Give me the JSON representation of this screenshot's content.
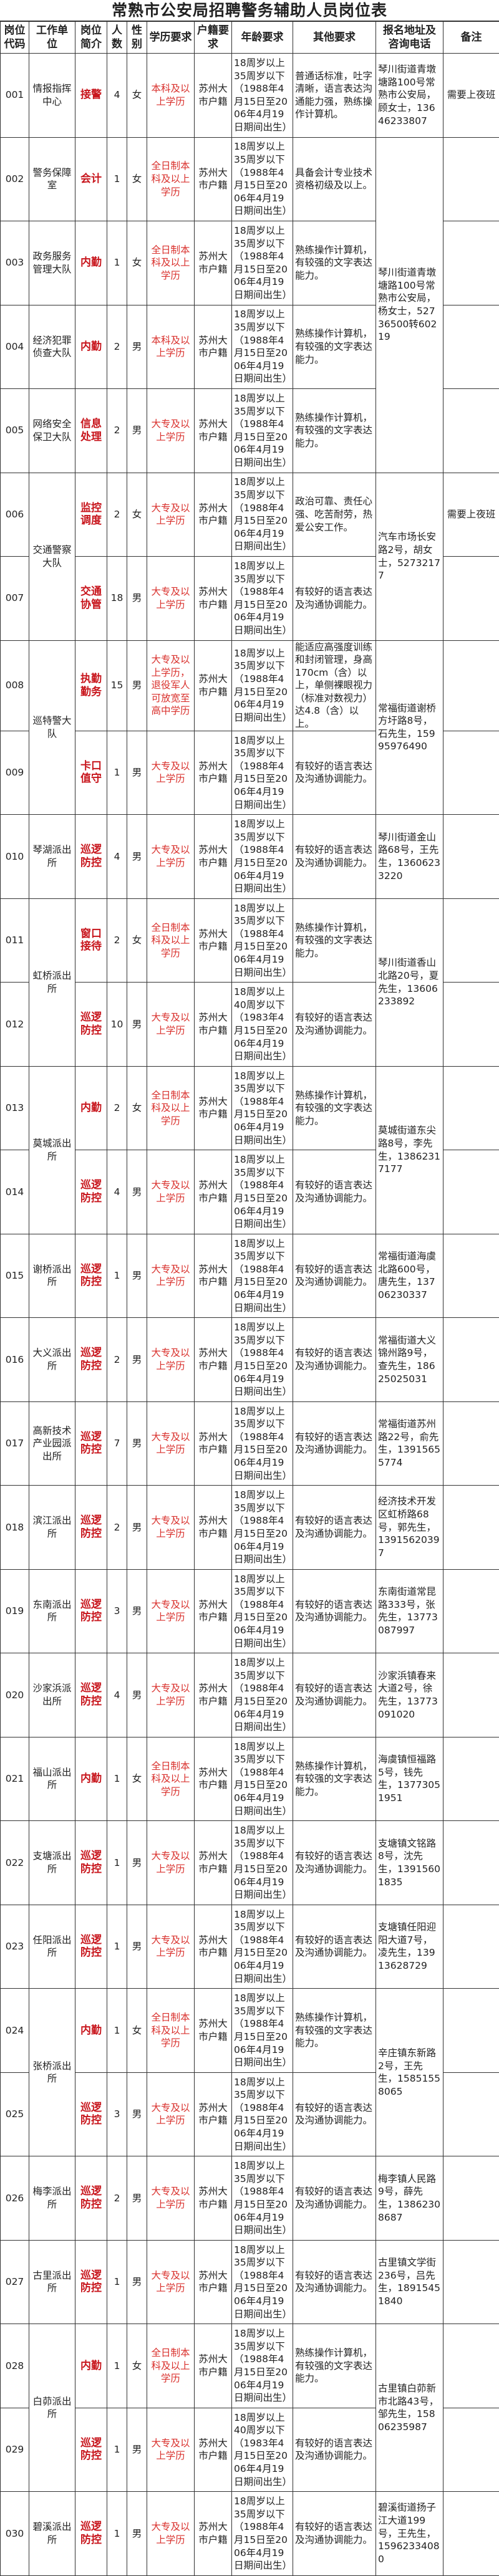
{
  "title": "常熟市公安局招聘警务辅助人员岗位表",
  "headers": [
    "岗位代码",
    "工作单位",
    "岗位简介",
    "人数",
    "性别",
    "学历要求",
    "户籍要求",
    "年龄要求",
    "其他要求",
    "报名地址及咨询电话",
    "备注"
  ],
  "colors": {
    "position": "#c8161d",
    "education": "#d9302c",
    "border": "#333333"
  },
  "rows": [
    {
      "code": "001",
      "unit": "情报指挥中心",
      "position": "接警",
      "count": "4",
      "gender": "女",
      "education": "本科及以上学历",
      "hukou": "苏州大市户籍",
      "age": "18周岁以上35周岁以下（1988年4月15日至2006年4月19日期间出生）",
      "other": "普通话标准，吐字清晰，语言表达沟通能力强，熟练操作计算机。",
      "address": "琴川街道青墩塘路100号常熟市公安局，顾女士，13646233807",
      "remark": "需要上夜班"
    },
    {
      "code": "002",
      "unit": "警务保障室",
      "position": "会计",
      "count": "1",
      "gender": "女",
      "education": "全日制本科及以上学历",
      "hukou": "苏州大市户籍",
      "age": "18周岁以上35周岁以下（1988年4月15日至2006年4月19日期间出生）",
      "other": "具备会计专业技术资格初级及以上。",
      "address": "琴川街道青墩塘路100号常熟市公安局，杨女士，52736500转60219",
      "remark": ""
    },
    {
      "code": "003",
      "unit": "政务服务管理大队",
      "position": "内勤",
      "count": "1",
      "gender": "女",
      "education": "全日制本科及以上学历",
      "hukou": "苏州大市户籍",
      "age": "18周岁以上35周岁以下（1988年4月15日至2006年4月19日期间出生）",
      "other": "熟练操作计算机，有较强的文字表达能力。",
      "address": null,
      "remark": ""
    },
    {
      "code": "004",
      "unit": "经济犯罪侦查大队",
      "position": "内勤",
      "count": "2",
      "gender": "男",
      "education": "本科及以上学历",
      "hukou": "苏州大市户籍",
      "age": "18周岁以上35周岁以下（1988年4月15日至2006年4月19日期间出生）",
      "other": "熟练操作计算机，有较强的文字表达能力。",
      "address": null,
      "remark": ""
    },
    {
      "code": "005",
      "unit": "网络安全保卫大队",
      "position": "信息处理",
      "count": "2",
      "gender": "男",
      "education": "大专及以上学历",
      "hukou": "苏州大市户籍",
      "age": "18周岁以上35周岁以下（1988年4月15日至2006年4月19日期间出生）",
      "other": "熟练操作计算机，有较强的文字表达能力。",
      "address": null,
      "remark": ""
    },
    {
      "code": "006",
      "unit": "交通警察大队",
      "position": "监控调度",
      "count": "2",
      "gender": "女",
      "education": "大专及以上学历",
      "hukou": "苏州大市户籍",
      "age": "18周岁以上35周岁以下（1988年4月15日至2006年4月19日期间出生）",
      "other": "政治可靠、责任心强、吃苦耐劳，热爱公安工作。",
      "address": "汽车市场长安路2号，胡女士，52732177",
      "remark": "需要上夜班"
    },
    {
      "code": "007",
      "unit": null,
      "position": "交通协管",
      "count": "18",
      "gender": "男",
      "education": "大专及以上学历",
      "hukou": "苏州大市户籍",
      "age": "18周岁以上35周岁以下（1988年4月15日至2006年4月19日期间出生）",
      "other": "有较好的语言表达及沟通协调能力。",
      "address": null,
      "remark": ""
    },
    {
      "code": "008",
      "unit": "巡特警大队",
      "position": "执勤勤务",
      "count": "15",
      "gender": "男",
      "education": "大专及以上学历，退役军人可放宽至高中学历",
      "hukou": "苏州大市户籍",
      "age": "18周岁以上35周岁以下（1988年4月15日至2006年4月19日期间出生）",
      "other": "能适应高强度训练和封闭管理，身高170cm（含）以上，单侧裸眼视力（标准对数视力）达4.8（含）以上。",
      "address": "常福街道谢桥方圩路8号，石先生，15995976490",
      "remark": ""
    },
    {
      "code": "009",
      "unit": null,
      "position": "卡口值守",
      "count": "1",
      "gender": "男",
      "education": "大专及以上学历",
      "hukou": "苏州大市户籍",
      "age": "18周岁以上35周岁以下（1988年4月15日至2006年4月19日期间出生）",
      "other": "有较好的语言表达及沟通协调能力。",
      "address": null,
      "remark": ""
    },
    {
      "code": "010",
      "unit": "琴湖派出所",
      "position": "巡逻防控",
      "count": "4",
      "gender": "男",
      "education": "大专及以上学历",
      "hukou": "苏州大市户籍",
      "age": "18周岁以上35周岁以下（1988年4月15日至2006年4月19日期间出生）",
      "other": "有较好的语言表达及沟通协调能力。",
      "address": "琴川街道金山路68号，王先生，13606233220",
      "remark": ""
    },
    {
      "code": "011",
      "unit": "虹桥派出所",
      "position": "窗口接待",
      "count": "2",
      "gender": "女",
      "education": "全日制本科及以上学历",
      "hukou": "苏州大市户籍",
      "age": "18周岁以上35周岁以下（1988年4月15日至2006年4月19日期间出生）",
      "other": "熟练操作计算机，有较强的文字表达能力。",
      "address": "琴川街道香山北路20号，夏先生，13606233892",
      "remark": ""
    },
    {
      "code": "012",
      "unit": null,
      "position": "巡逻防控",
      "count": "10",
      "gender": "男",
      "education": "大专及以上学历",
      "hukou": "苏州大市户籍",
      "age": "18周岁以上40周岁以下（1983年4月15日至2006年4月19日期间出生）",
      "other": "有较好的语言表达及沟通协调能力。",
      "address": null,
      "remark": ""
    },
    {
      "code": "013",
      "unit": "莫城派出所",
      "position": "内勤",
      "count": "2",
      "gender": "女",
      "education": "全日制本科及以上学历",
      "hukou": "苏州大市户籍",
      "age": "18周岁以上35周岁以下（1988年4月15日至2006年4月19日期间出生）",
      "other": "熟练操作计算机，有较强的文字表达能力。",
      "address": "莫城街道东尖路8号，李先生，13862317177",
      "remark": ""
    },
    {
      "code": "014",
      "unit": null,
      "position": "巡逻防控",
      "count": "4",
      "gender": "男",
      "education": "大专及以上学历",
      "hukou": "苏州大市户籍",
      "age": "18周岁以上35周岁以下（1988年4月15日至2006年4月19日期间出生）",
      "other": "有较好的语言表达及沟通协调能力。",
      "address": null,
      "remark": ""
    },
    {
      "code": "015",
      "unit": "谢桥派出所",
      "position": "巡逻防控",
      "count": "1",
      "gender": "男",
      "education": "大专及以上学历",
      "hukou": "苏州大市户籍",
      "age": "18周岁以上35周岁以下（1988年4月15日至2006年4月19日期间出生）",
      "other": "有较好的语言表达及沟通协调能力。",
      "address": "常福街道海虞北路600号，唐先生，13706230337",
      "remark": ""
    },
    {
      "code": "016",
      "unit": "大义派出所",
      "position": "巡逻防控",
      "count": "2",
      "gender": "男",
      "education": "大专及以上学历",
      "hukou": "苏州大市户籍",
      "age": "18周岁以上35周岁以下（1988年4月15日至2006年4月19日期间出生）",
      "other": "有较好的语言表达及沟通协调能力。",
      "address": "常福街道大义锦州路9号，查先生，18625025031",
      "remark": ""
    },
    {
      "code": "017",
      "unit": "高新技术产业园派出所",
      "position": "巡逻防控",
      "count": "7",
      "gender": "男",
      "education": "大专及以上学历",
      "hukou": "苏州大市户籍",
      "age": "18周岁以上35周岁以下（1988年4月15日至2006年4月19日期间出生）",
      "other": "有较好的语言表达及沟通协调能力。",
      "address": "常福街道苏州路22号，俞先生，13915655774",
      "remark": ""
    },
    {
      "code": "018",
      "unit": "滨江派出所",
      "position": "巡逻防控",
      "count": "2",
      "gender": "男",
      "education": "大专及以上学历",
      "hukou": "苏州大市户籍",
      "age": "18周岁以上35周岁以下（1988年4月15日至2006年4月19日期间出生）",
      "other": "有较好的语言表达及沟通协调能力。",
      "address": "经济技术开发区虹桥路68号，郭先生，13915620397",
      "remark": ""
    },
    {
      "code": "019",
      "unit": "东南派出所",
      "position": "巡逻防控",
      "count": "3",
      "gender": "男",
      "education": "大专及以上学历",
      "hukou": "苏州大市户籍",
      "age": "18周岁以上35周岁以下（1988年4月15日至2006年4月19日期间出生）",
      "other": "有较好的语言表达及沟通协调能力。",
      "address": "东南街道常昆路333号，张先生，13773087997",
      "remark": ""
    },
    {
      "code": "020",
      "unit": "沙家浜派出所",
      "position": "巡逻防控",
      "count": "4",
      "gender": "男",
      "education": "大专及以上学历",
      "hukou": "苏州大市户籍",
      "age": "18周岁以上35周岁以下（1988年4月15日至2006年4月19日期间出生）",
      "other": "有较好的语言表达及沟通协调能力。",
      "address": "沙家浜镇春来大道2号，徐先生，13773091020",
      "remark": ""
    },
    {
      "code": "021",
      "unit": "福山派出所",
      "position": "内勤",
      "count": "1",
      "gender": "女",
      "education": "全日制本科及以上学历",
      "hukou": "苏州大市户籍",
      "age": "18周岁以上35周岁以下（1988年4月15日至2006年4月19日期间出生）",
      "other": "熟练操作计算机，有较强的文字表达能力。",
      "address": "海虞镇恒福路5号，钱先生，13773051951",
      "remark": ""
    },
    {
      "code": "022",
      "unit": "支塘派出所",
      "position": "巡逻防控",
      "count": "1",
      "gender": "男",
      "education": "大专及以上学历",
      "hukou": "苏州大市户籍",
      "age": "18周岁以上35周岁以下（1988年4月15日至2006年4月19日期间出生）",
      "other": "有较好的语言表达及沟通协调能力。",
      "address": "支塘镇文铭路8号，沈先生，13915601835",
      "remark": ""
    },
    {
      "code": "023",
      "unit": "任阳派出所",
      "position": "巡逻防控",
      "count": "1",
      "gender": "男",
      "education": "大专及以上学历",
      "hukou": "苏州大市户籍",
      "age": "18周岁以上35周岁以下（1988年4月15日至2006年4月19日期间出生）",
      "other": "有较好的语言表达及沟通协调能力。",
      "address": "支塘镇任阳迎阳大道7号，凌先生，13913628729",
      "remark": ""
    },
    {
      "code": "024",
      "unit": "张桥派出所",
      "position": "内勤",
      "count": "1",
      "gender": "女",
      "education": "全日制本科及以上学历",
      "hukou": "苏州大市户籍",
      "age": "18周岁以上35周岁以下（1988年4月15日至2006年4月19日期间出生）",
      "other": "熟练操作计算机，有较强的文字表达能力。",
      "address": "辛庄镇东新路2号，王先生，15851558065",
      "remark": ""
    },
    {
      "code": "025",
      "unit": null,
      "position": "巡逻防控",
      "count": "3",
      "gender": "男",
      "education": "大专及以上学历",
      "hukou": "苏州大市户籍",
      "age": "18周岁以上35周岁以下（1988年4月15日至2006年4月19日期间出生）",
      "other": "有较好的语言表达及沟通协调能力。",
      "address": null,
      "remark": ""
    },
    {
      "code": "026",
      "unit": "梅李派出所",
      "position": "巡逻防控",
      "count": "2",
      "gender": "男",
      "education": "大专及以上学历",
      "hukou": "苏州大市户籍",
      "age": "18周岁以上35周岁以下（1988年4月15日至2006年4月19日期间出生）",
      "other": "有较好的语言表达及沟通协调能力。",
      "address": "梅李镇人民路9号，薛先生，13862308687",
      "remark": ""
    },
    {
      "code": "027",
      "unit": "古里派出所",
      "position": "巡逻防控",
      "count": "1",
      "gender": "男",
      "education": "大专及以上学历",
      "hukou": "苏州大市户籍",
      "age": "18周岁以上35周岁以下（1988年4月15日至2006年4月19日期间出生）",
      "other": "有较好的语言表达及沟通协调能力。",
      "address": "古里镇文学街236号，吕先生，18915451840",
      "remark": ""
    },
    {
      "code": "028",
      "unit": "白茆派出所",
      "position": "内勤",
      "count": "1",
      "gender": "女",
      "education": "全日制本科及以上学历",
      "hukou": "苏州大市户籍",
      "age": "18周岁以上35周岁以下（1988年4月15日至2006年4月19日期间出生）",
      "other": "熟练操作计算机，有较强的文字表达能力。",
      "address": "古里镇白茆新市北路43号，邹先生，15806235987",
      "remark": ""
    },
    {
      "code": "029",
      "unit": null,
      "position": "巡逻防控",
      "count": "1",
      "gender": "男",
      "education": "大专及以上学历",
      "hukou": "苏州大市户籍",
      "age": "18周岁以上40周岁以下（1983年4月15日至2006年4月19日期间出生）",
      "other": "有较好的语言表达及沟通协调能力。",
      "address": null,
      "remark": ""
    },
    {
      "code": "030",
      "unit": "碧溪派出所",
      "position": "巡逻防控",
      "count": "1",
      "gender": "男",
      "education": "大专及以上学历",
      "hukou": "苏州大市户籍",
      "age": "18周岁以上35周岁以下（1988年4月15日至2006年4月19日期间出生）",
      "other": "有较好的语言表达及沟通协调能力。",
      "address": "碧溪街道扬子江大道199号，王先生，15962334080",
      "remark": ""
    }
  ]
}
